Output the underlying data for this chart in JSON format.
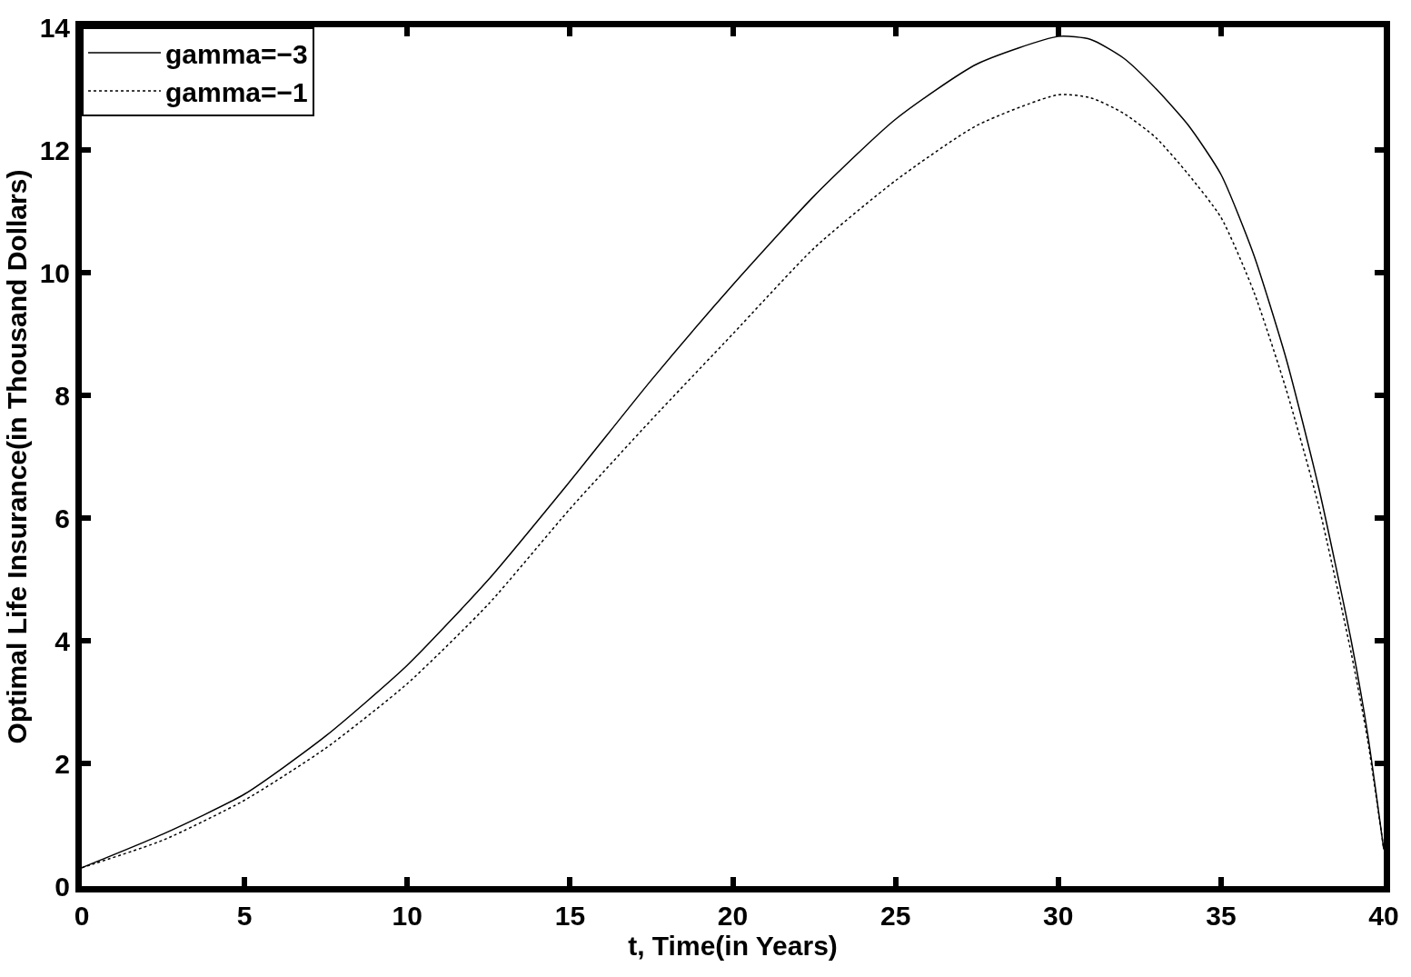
{
  "chart_data": {
    "type": "line",
    "xlabel": "t, Time(in Years)",
    "ylabel": "Optimal Life Insurance(in Thousand Dollars)",
    "x": [
      0,
      2.5,
      5,
      7.5,
      10,
      12.5,
      15,
      17.5,
      20,
      22.5,
      25,
      27.5,
      30,
      31,
      32,
      33,
      34,
      35,
      36,
      37,
      38,
      39,
      39.5,
      40
    ],
    "series": [
      {
        "name": "gamma=−3",
        "color": "#000000",
        "line_style": "solid",
        "values": [
          0.3,
          0.85,
          1.5,
          2.45,
          3.6,
          5.0,
          6.6,
          8.25,
          9.8,
          11.25,
          12.5,
          13.4,
          13.85,
          13.8,
          13.5,
          13.0,
          12.4,
          11.6,
          10.3,
          8.6,
          6.5,
          4.0,
          2.5,
          0.6
        ]
      },
      {
        "name": "gamma=−1",
        "color": "#000000",
        "line_style": "dotted",
        "values": [
          0.3,
          0.75,
          1.4,
          2.25,
          3.3,
          4.6,
          6.15,
          7.6,
          9.0,
          10.4,
          11.5,
          12.4,
          12.9,
          12.85,
          12.6,
          12.2,
          11.6,
          10.9,
          9.7,
          8.1,
          6.2,
          3.8,
          2.4,
          0.6
        ]
      }
    ],
    "xlim": [
      0,
      40
    ],
    "xticks": [
      0,
      5,
      10,
      15,
      20,
      25,
      30,
      35,
      40
    ],
    "ylim": [
      0,
      14
    ],
    "yticks": [
      0,
      2,
      4,
      6,
      8,
      10,
      12,
      14
    ],
    "legend": "top left"
  }
}
